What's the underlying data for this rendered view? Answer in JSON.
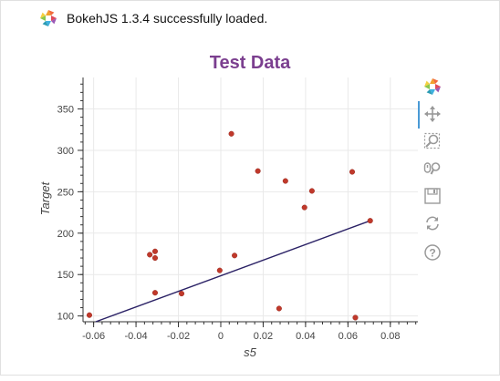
{
  "banner": {
    "message": "BokehJS 1.3.4 successfully loaded."
  },
  "toolbar": {
    "tools": [
      {
        "name": "bokeh-logo-icon"
      },
      {
        "name": "pan-icon"
      },
      {
        "name": "box-zoom-icon"
      },
      {
        "name": "wheel-zoom-icon"
      },
      {
        "name": "save-icon"
      },
      {
        "name": "reset-icon"
      },
      {
        "name": "help-icon"
      }
    ]
  },
  "colors": {
    "title": "#7b3f8f",
    "points": "#c0392b",
    "line": "#2b2266",
    "grid": "#e9e9e9"
  },
  "chart_data": {
    "type": "scatter",
    "title": "Test Data",
    "xlabel": "s5",
    "ylabel": "Target",
    "xlim": [
      -0.065,
      0.093
    ],
    "ylim": [
      93,
      388
    ],
    "xticks": [
      -0.06,
      -0.04,
      -0.02,
      0,
      0.02,
      0.04,
      0.06,
      0.08
    ],
    "xtick_labels": [
      "-0.06",
      "-0.04",
      "-0.02",
      "0",
      "0.02",
      "0.04",
      "0.06",
      "0.08"
    ],
    "yticks": [
      100,
      150,
      200,
      250,
      300,
      350
    ],
    "ytick_labels": [
      "100",
      "150",
      "200",
      "250",
      "300",
      "350"
    ],
    "grid": true,
    "series": [
      {
        "type": "scatter",
        "x": [
          -0.062,
          -0.0335,
          -0.031,
          -0.031,
          -0.031,
          -0.0185,
          -0.0005,
          0.005,
          0.0065,
          0.0175,
          0.0275,
          0.0305,
          0.0395,
          0.043,
          0.062,
          0.0635,
          0.0705
        ],
        "y": [
          101,
          174,
          178,
          170,
          128,
          127,
          155,
          320,
          173,
          275,
          109,
          263,
          231,
          251,
          274,
          98,
          215
        ]
      },
      {
        "type": "line",
        "x": [
          -0.059,
          0.0705
        ],
        "y": [
          93,
          215
        ]
      }
    ]
  }
}
